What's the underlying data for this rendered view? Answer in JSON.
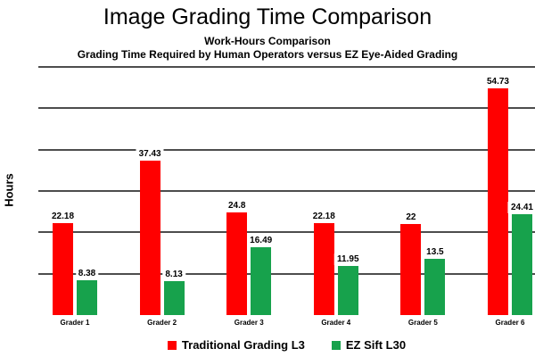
{
  "title": "Image Grading Time Comparison",
  "subtitle1": "Work-Hours Comparison",
  "subtitle2": "Grading Time Required by Human Operators versus EZ Eye-Aided Grading",
  "ylabel": "Hours",
  "colors": {
    "traditional_red": "#FF0000",
    "ezsift_green": "#17A24C",
    "gridline_gray": "#4D4D4D",
    "text_black": "#000000",
    "background": "#FFFFFF"
  },
  "legend": [
    {
      "label": "Traditional Grading L3",
      "color": "#FF0000"
    },
    {
      "label": "EZ Sift L30",
      "color": "#17A24C"
    }
  ],
  "chart_data": {
    "type": "bar",
    "title": "Image Grading Time Comparison",
    "subtitles": [
      "Work-Hours Comparison",
      "Grading Time Required by Human Operators versus EZ Eye-Aided Grading"
    ],
    "xlabel": "",
    "ylabel": "Hours",
    "categories": [
      "Grader 1",
      "Grader 2",
      "Grader 3",
      "Grader 4",
      "Grader 5",
      "Grader 6"
    ],
    "series": [
      {
        "name": "Traditional Grading L3",
        "color": "#FF0000",
        "values": [
          22.18,
          37.43,
          24.8,
          22.18,
          22,
          54.73
        ]
      },
      {
        "name": "EZ Sift L30",
        "color": "#17A24C",
        "values": [
          8.38,
          8.13,
          16.49,
          11.95,
          13.5,
          24.41
        ]
      }
    ],
    "ylim": [
      0,
      60
    ],
    "gridlines": [
      10,
      20,
      30,
      40,
      50,
      60
    ],
    "grid": "horizontal-only",
    "y_tick_labels_visible": false,
    "value_labels_visible": true,
    "legend_position": "bottom"
  }
}
